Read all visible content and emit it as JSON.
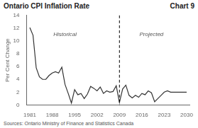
{
  "chart_data": {
    "type": "line",
    "title": "Ontario CPI Inflation Rate",
    "chart_label": "Chart 9",
    "ylabel": "Per Cent Change",
    "source": "Sources: Ontario Ministry of Finance and Statistics Canada",
    "annotations": [
      {
        "text": "Historical",
        "x": 1992,
        "y": 11.5
      },
      {
        "text": "Projected",
        "x": 2019,
        "y": 11.5
      }
    ],
    "vlines": [
      {
        "x": 2009,
        "color": "#000000",
        "line_style": "dashed"
      }
    ],
    "x": [
      1981,
      1982,
      1983,
      1984,
      1985,
      1986,
      1987,
      1988,
      1989,
      1990,
      1991,
      1992,
      1993,
      1994,
      1995,
      1996,
      1997,
      1998,
      1999,
      2000,
      2001,
      2002,
      2003,
      2004,
      2005,
      2006,
      2007,
      2008,
      2009,
      2010,
      2011,
      2012,
      2013,
      2014,
      2015,
      2016,
      2017,
      2018,
      2019,
      2020,
      2021,
      2022,
      2023,
      2024,
      2025,
      2026,
      2027,
      2028,
      2029,
      2030
    ],
    "values": [
      12.1,
      10.9,
      5.8,
      4.4,
      4.0,
      4.0,
      4.6,
      5.0,
      5.2,
      5.0,
      5.9,
      3.2,
      1.8,
      0.3,
      2.4,
      1.6,
      1.8,
      1.0,
      1.7,
      2.9,
      2.6,
      2.2,
      2.8,
      1.8,
      2.2,
      2.0,
      2.1,
      3.0,
      0.4,
      2.5,
      3.1,
      1.5,
      1.1,
      1.5,
      1.2,
      1.8,
      1.6,
      2.2,
      1.9,
      0.5,
      1.0,
      1.5,
      2.0,
      2.2,
      2.0,
      2.0,
      2.0,
      2.0,
      2.0,
      2.0
    ],
    "color": "#333333",
    "xlim": [
      1980,
      2031
    ],
    "xticks": [
      1981,
      1988,
      1995,
      2002,
      2009,
      2016,
      2023,
      2030
    ],
    "ylim": [
      0,
      14
    ],
    "yticks": [
      0,
      2,
      4,
      6,
      8,
      10,
      12,
      14
    ],
    "grid": false
  }
}
